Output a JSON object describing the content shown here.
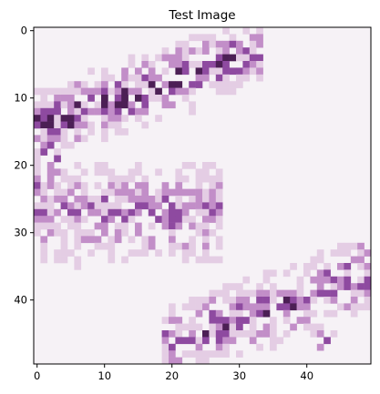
{
  "figure": {
    "title": "Test Image",
    "image_grid": {
      "rows": 50,
      "cols": 50
    },
    "x_ticks": [
      0,
      10,
      20,
      30,
      40
    ],
    "y_ticks": [
      0,
      10,
      20,
      30,
      40
    ],
    "colormap": {
      "background": "#f6f2f6",
      "light": "#e4cde4",
      "mid": "#c28ec8",
      "dark": "#8e4aa0",
      "darkest": "#4c1f55"
    }
  }
}
